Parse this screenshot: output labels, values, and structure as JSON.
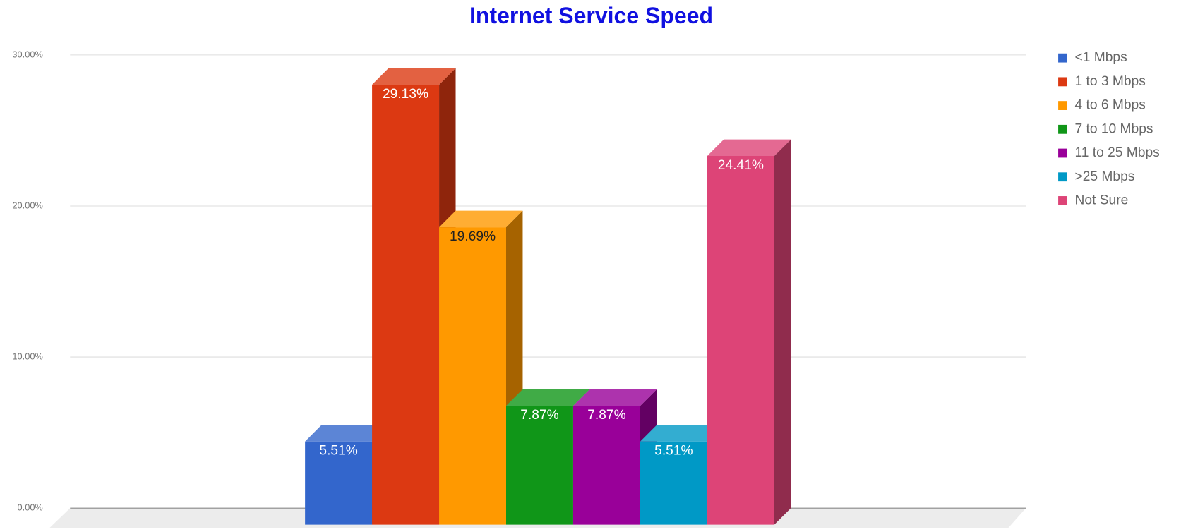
{
  "chart_data": {
    "type": "bar3d",
    "title": "Internet Service Speed",
    "categories": [
      null
    ],
    "series": [
      {
        "name": "<1 Mbps",
        "color": "#3366cc",
        "label_color": "#ffffff",
        "values": [
          5.51
        ],
        "value_labels": [
          "5.51%"
        ]
      },
      {
        "name": "1 to 3 Mbps",
        "color": "#dc3912",
        "label_color": "#ffffff",
        "values": [
          29.13
        ],
        "value_labels": [
          "29.13%"
        ]
      },
      {
        "name": "4 to 6 Mbps",
        "color": "#ff9900",
        "label_color": "#222222",
        "values": [
          19.69
        ],
        "value_labels": [
          "19.69%"
        ]
      },
      {
        "name": "7 to 10 Mbps",
        "color": "#109618",
        "label_color": "#ffffff",
        "values": [
          7.87
        ],
        "value_labels": [
          "7.87%"
        ]
      },
      {
        "name": "11 to 25 Mbps",
        "color": "#990099",
        "label_color": "#ffffff",
        "values": [
          7.87
        ],
        "value_labels": [
          "7.87%"
        ]
      },
      {
        "name": ">25 Mbps",
        "color": "#0099c6",
        "label_color": "#ffffff",
        "values": [
          5.51
        ],
        "value_labels": [
          "5.51%"
        ]
      },
      {
        "name": "Not Sure",
        "color": "#dd4477",
        "label_color": "#ffffff",
        "values": [
          24.41
        ],
        "value_labels": [
          "24.41%"
        ]
      }
    ],
    "ylim": [
      0,
      30
    ],
    "yticks": [
      {
        "value": 0,
        "label": "0.00%"
      },
      {
        "value": 10,
        "label": "10.00%"
      },
      {
        "value": 20,
        "label": "20.00%"
      },
      {
        "value": 30,
        "label": "30.00%"
      }
    ],
    "grid": true,
    "legend": "right"
  }
}
